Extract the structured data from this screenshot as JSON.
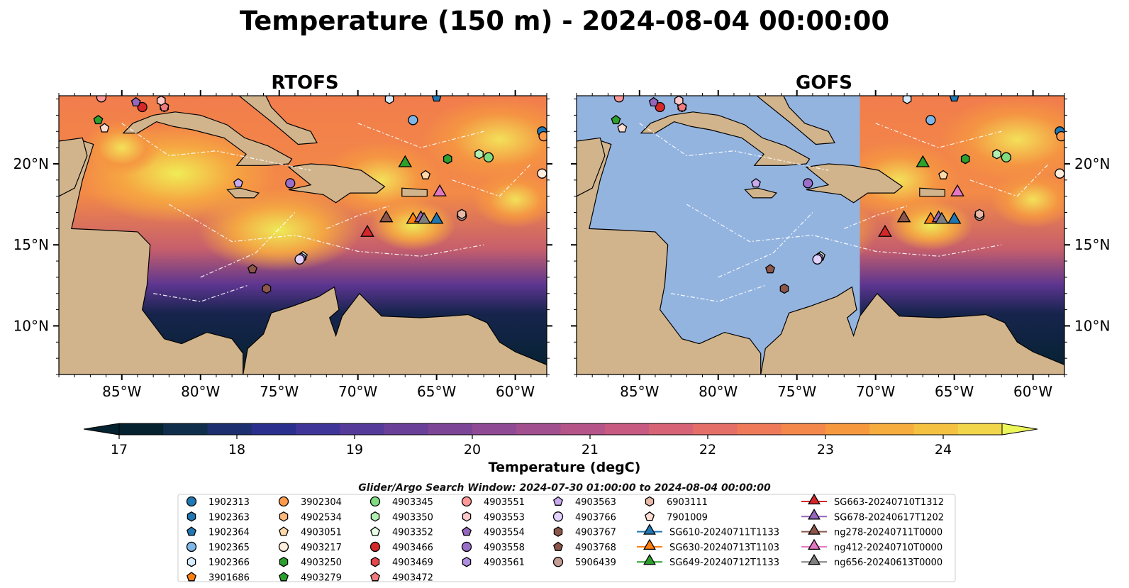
{
  "title": "Temperature (150 m) - 2024-08-04 00:00:00",
  "search_window": "Glider/Argo Search Window: 2024-07-30 01:00:00 to 2024-08-04 00:00:00",
  "panels": [
    {
      "title": "RTOFS",
      "coverage": "full"
    },
    {
      "title": "GOFS",
      "coverage": "east-of-71W"
    }
  ],
  "map_extent": {
    "lon": [
      -89,
      -58
    ],
    "lat": [
      7,
      24.2
    ]
  },
  "lon_ticks": [
    -85,
    -80,
    -75,
    -70,
    -65,
    -60
  ],
  "lon_tick_labels": [
    "85°W",
    "80°W",
    "75°W",
    "70°W",
    "65°W",
    "60°W"
  ],
  "lat_ticks": [
    10,
    15,
    20
  ],
  "lat_tick_labels": [
    "10°N",
    "15°N",
    "20°N"
  ],
  "colors": {
    "land": "#d2b48c",
    "ocean_nodata": "#94b4e0",
    "coast": "#000000",
    "eez": "#ffffff"
  },
  "chart_data": {
    "type": "heatmap",
    "colorbar": {
      "label": "Temperature (degC)",
      "ticks": [
        17,
        18,
        19,
        20,
        21,
        22,
        23,
        24
      ],
      "range": [
        17,
        24.5
      ],
      "extend": "both",
      "colormap": "thermal"
    },
    "argo_floats": [
      {
        "id": "1902313",
        "lon": -58.3,
        "lat": 22.0,
        "marker": "circle",
        "color": "#1f77b4"
      },
      {
        "id": "1902363",
        "lon": -58.0,
        "lat": 21.7,
        "marker": "hexagon",
        "color": "#1f77b4"
      },
      {
        "id": "1902364",
        "lon": -65.0,
        "lat": 24.1,
        "marker": "pentagon",
        "color": "#1f77b4"
      },
      {
        "id": "1902365",
        "lon": -66.5,
        "lat": 22.7,
        "marker": "circle",
        "color": "#7fb6e8"
      },
      {
        "id": "1902366",
        "lon": -68.0,
        "lat": 24.0,
        "marker": "hexagon",
        "color": "#d6ecff"
      },
      {
        "id": "3901686",
        "lon": -58.0,
        "lat": 21.7,
        "marker": "pentagon",
        "color": "#ff7f0e"
      },
      {
        "id": "3902304",
        "lon": -58.2,
        "lat": 21.7,
        "marker": "circle",
        "color": "#ff9a4a"
      },
      {
        "id": "4902534",
        "lon": -64.3,
        "lat": 20.3,
        "marker": "hexagon",
        "color": "#ffb77a"
      },
      {
        "id": "4903051",
        "lon": -65.7,
        "lat": 19.3,
        "marker": "pentagon",
        "color": "#ffd9a8"
      },
      {
        "id": "4903217",
        "lon": -58.3,
        "lat": 19.4,
        "marker": "circle",
        "color": "#ffeedd"
      },
      {
        "id": "4903250",
        "lon": -64.3,
        "lat": 20.3,
        "marker": "hexagon",
        "color": "#2ca02c"
      },
      {
        "id": "4903279",
        "lon": -86.5,
        "lat": 22.7,
        "marker": "pentagon",
        "color": "#2ca02c"
      },
      {
        "id": "4903345",
        "lon": -61.7,
        "lat": 20.4,
        "marker": "circle",
        "color": "#7fdb7f"
      },
      {
        "id": "4903350",
        "lon": -62.3,
        "lat": 20.6,
        "marker": "hexagon",
        "color": "#b2f0b2"
      },
      {
        "id": "4903352",
        "lon": -73.5,
        "lat": 14.3,
        "marker": "pentagon",
        "color": "#e6ffe6"
      },
      {
        "id": "4903466",
        "lon": -83.7,
        "lat": 23.5,
        "marker": "circle",
        "color": "#d62728"
      },
      {
        "id": "4903469",
        "lon": -82.3,
        "lat": 23.5,
        "marker": "hexagon",
        "color": "#e8474a"
      },
      {
        "id": "4903472",
        "lon": -82.3,
        "lat": 23.5,
        "marker": "pentagon",
        "color": "#f07a7c"
      },
      {
        "id": "4903551",
        "lon": -86.3,
        "lat": 24.1,
        "marker": "circle",
        "color": "#ff9896"
      },
      {
        "id": "4903553",
        "lon": -82.5,
        "lat": 23.9,
        "marker": "hexagon",
        "color": "#ffc9c9"
      },
      {
        "id": "4903554",
        "lon": -84.1,
        "lat": 23.8,
        "marker": "pentagon",
        "color": "#9467bd"
      },
      {
        "id": "4903558",
        "lon": -74.3,
        "lat": 18.8,
        "marker": "circle",
        "color": "#9a6fc9"
      },
      {
        "id": "4903561",
        "lon": -73.6,
        "lat": 14.2,
        "marker": "hexagon",
        "color": "#b08ee0"
      },
      {
        "id": "4903563",
        "lon": -77.6,
        "lat": 18.8,
        "marker": "pentagon",
        "color": "#c9aaf0"
      },
      {
        "id": "4903766",
        "lon": -73.7,
        "lat": 14.1,
        "marker": "circle",
        "color": "#e3d2ff"
      },
      {
        "id": "4903767",
        "lon": -75.8,
        "lat": 12.3,
        "marker": "hexagon",
        "color": "#8c564b"
      },
      {
        "id": "4903768",
        "lon": -76.7,
        "lat": 13.5,
        "marker": "pentagon",
        "color": "#8c564b"
      },
      {
        "id": "5906439",
        "lon": -63.4,
        "lat": 16.8,
        "marker": "circle",
        "color": "#c49c94"
      },
      {
        "id": "6903111",
        "lon": -63.4,
        "lat": 16.9,
        "marker": "hexagon",
        "color": "#e8b9a8"
      },
      {
        "id": "7901009",
        "lon": -86.1,
        "lat": 22.2,
        "marker": "pentagon",
        "color": "#ffddd0"
      }
    ],
    "gliders": [
      {
        "id": "SG610-20240711T1133",
        "lon": -65.0,
        "lat": 16.5,
        "color": "#1f77b4"
      },
      {
        "id": "SG630-20240713T1103",
        "lon": -66.5,
        "lat": 16.5,
        "color": "#ff7f0e"
      },
      {
        "id": "SG649-20240712T1133",
        "lon": -67.0,
        "lat": 20.0,
        "color": "#2ca02c"
      },
      {
        "id": "SG663-20240710T1312",
        "lon": -69.4,
        "lat": 15.7,
        "color": "#d62728"
      },
      {
        "id": "SG678-20240617T1202",
        "lon": -66.0,
        "lat": 16.6,
        "color": "#9467bd"
      },
      {
        "id": "ng278-20240711T0000",
        "lon": -68.2,
        "lat": 16.6,
        "color": "#8c564b"
      },
      {
        "id": "ng412-20240710T0000",
        "lon": -64.8,
        "lat": 18.2,
        "color": "#e377c2"
      },
      {
        "id": "ng656-20240613T0000",
        "lon": -65.8,
        "lat": 16.5,
        "color": "#7f7f7f"
      }
    ]
  }
}
